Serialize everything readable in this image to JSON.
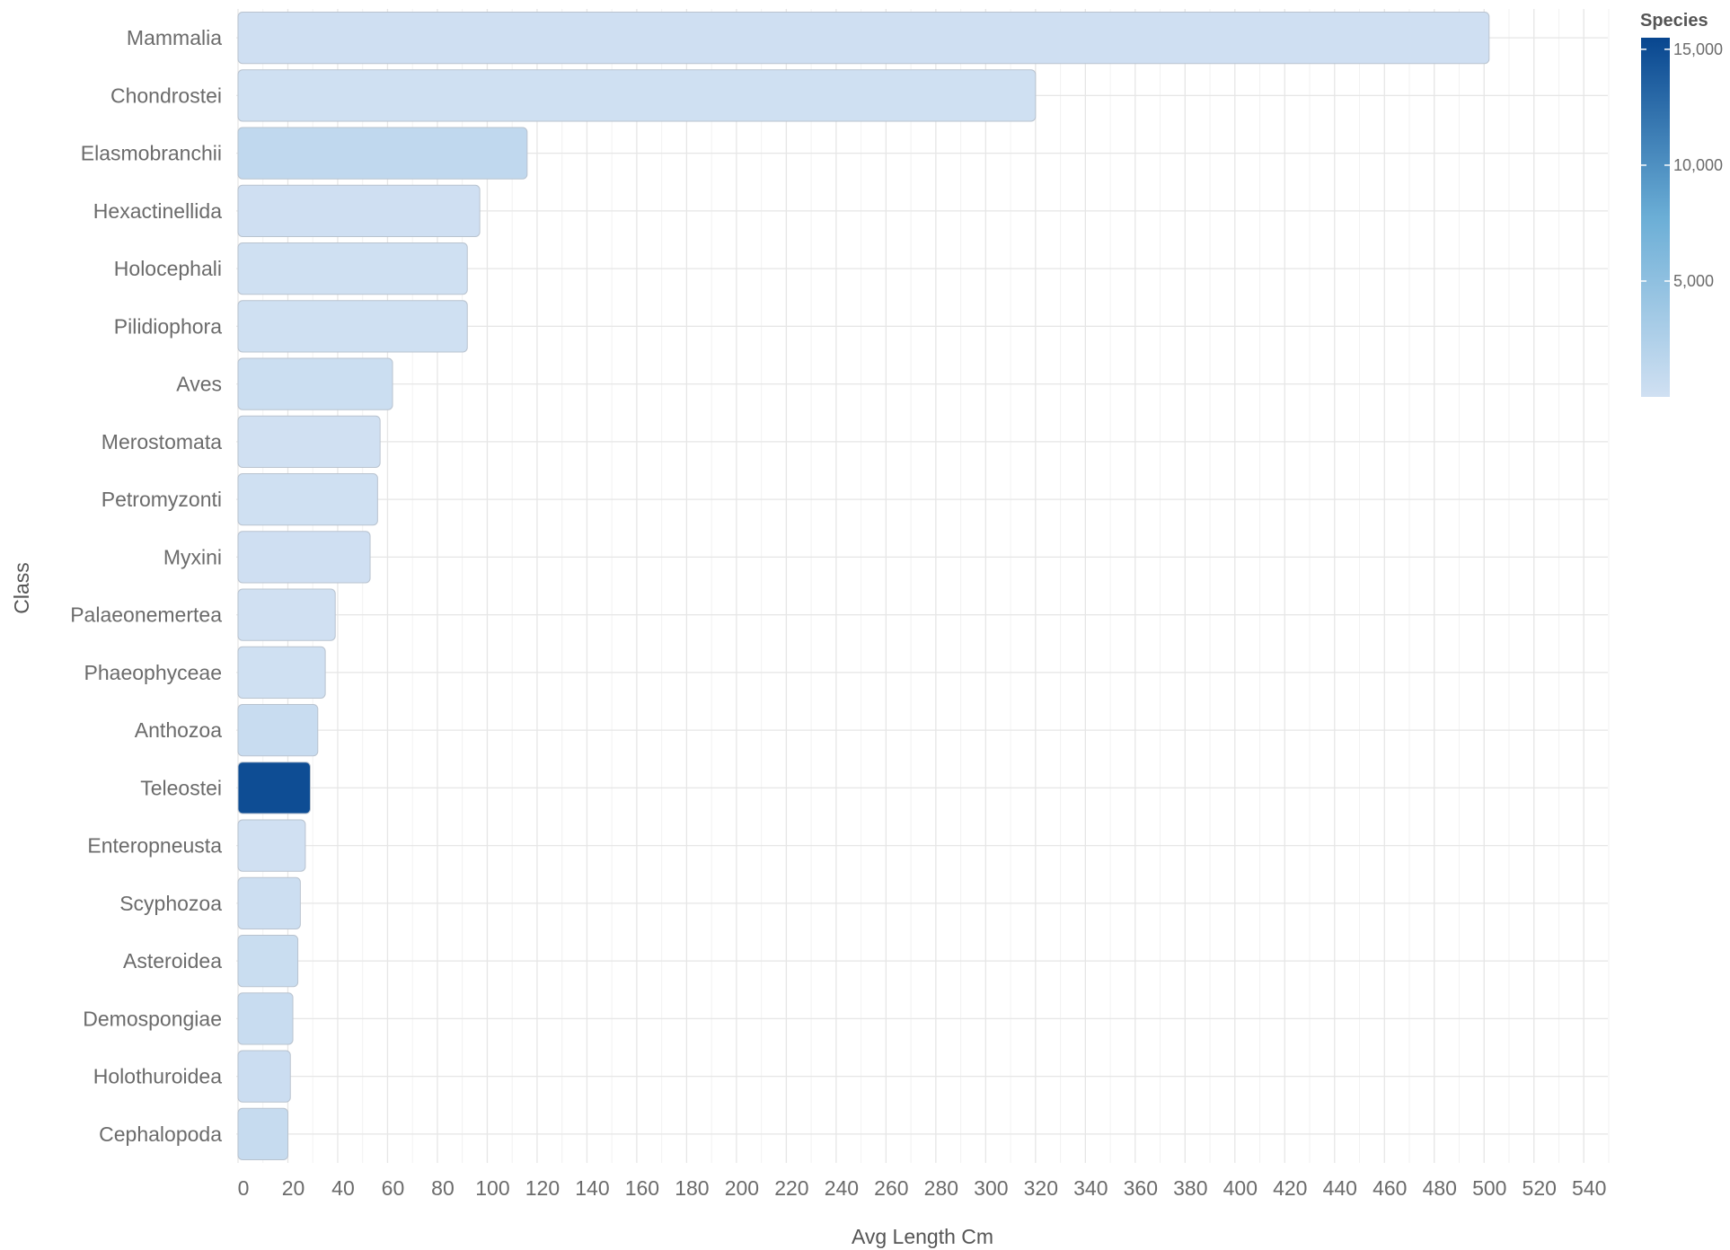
{
  "chart_data": {
    "type": "bar",
    "orientation": "horizontal",
    "title": "",
    "xlabel": "Avg Length Cm",
    "ylabel": "Class",
    "xlim": [
      0,
      550
    ],
    "x_ticks": [
      0,
      20,
      40,
      60,
      80,
      100,
      120,
      140,
      160,
      180,
      200,
      220,
      240,
      260,
      280,
      300,
      320,
      340,
      360,
      380,
      400,
      420,
      440,
      460,
      480,
      500,
      520,
      540
    ],
    "grid": true,
    "categories": [
      "Mammalia",
      "Chondrostei",
      "Elasmobranchii",
      "Hexactinellida",
      "Holocephali",
      "Pilidiophora",
      "Aves",
      "Merostomata",
      "Petromyzonti",
      "Myxini",
      "Palaeonemertea",
      "Phaeophyceae",
      "Anthozoa",
      "Teleostei",
      "Enteropneusta",
      "Scyphozoa",
      "Asteroidea",
      "Demospongiae",
      "Holothuroidea",
      "Cephalopoda"
    ],
    "values": [
      502,
      320,
      116,
      97,
      92,
      92,
      62,
      57,
      56,
      53,
      39,
      35,
      32,
      29,
      27,
      25,
      24,
      22,
      21,
      20
    ],
    "species": [
      110,
      60,
      1200,
      80,
      60,
      40,
      350,
      10,
      40,
      80,
      25,
      40,
      600,
      15000,
      20,
      300,
      500,
      600,
      400,
      800
    ],
    "legend": {
      "title": "Species",
      "position": "right",
      "ticks": [
        5000,
        10000,
        15000
      ],
      "tick_labels": [
        "5,000",
        "10,000",
        "15,000"
      ],
      "min": 1,
      "max": 15500,
      "color_low": "#d0e0f2",
      "color_high": "#08468f"
    }
  }
}
